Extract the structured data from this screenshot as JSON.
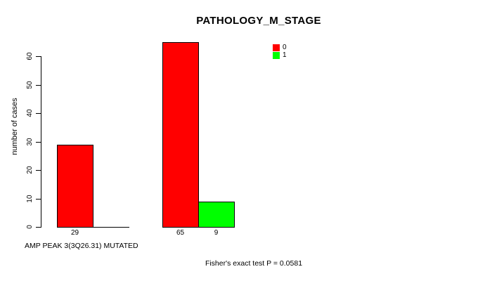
{
  "chart_data": {
    "type": "bar",
    "title": "PATHOLOGY_M_STAGE",
    "ylabel": "number of cases",
    "xlabel": "AMP PEAK 3(3Q26.31) MUTATED",
    "annotation": "Fisher's exact test P = 0.0581",
    "ylim": [
      0,
      65
    ],
    "yticks": [
      0,
      10,
      20,
      30,
      40,
      50,
      60
    ],
    "grid": false,
    "legend_position": "top-right-inside",
    "series_colors": {
      "0": "#ff0000",
      "1": "#00ff00"
    },
    "legend": [
      {
        "label": "0",
        "color": "#ff0000"
      },
      {
        "label": "1",
        "color": "#00ff00"
      }
    ],
    "groups": [
      {
        "bars": [
          {
            "series": "0",
            "value": 29,
            "label": "29"
          },
          {
            "series": "1",
            "value": 0,
            "label": ""
          }
        ]
      },
      {
        "bars": [
          {
            "series": "0",
            "value": 65,
            "label": "65"
          },
          {
            "series": "1",
            "value": 9,
            "label": "9"
          }
        ]
      }
    ]
  }
}
